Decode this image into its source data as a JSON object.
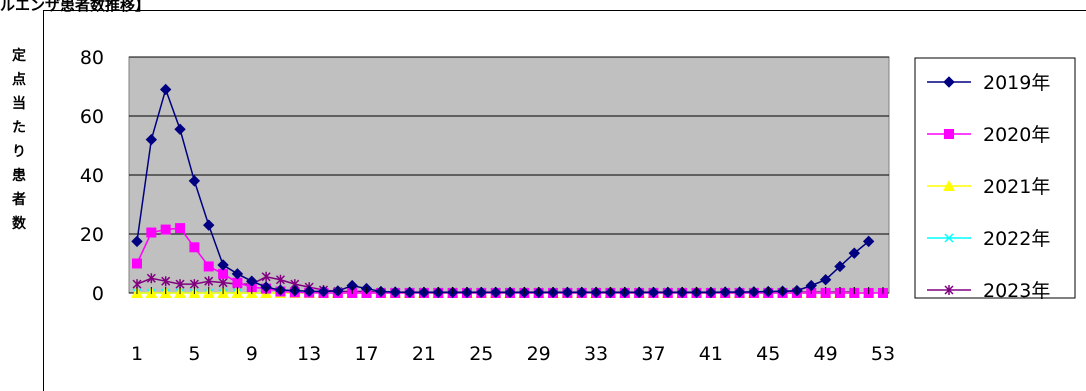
{
  "title": "ルエンザ患者数推移】",
  "chart_data": {
    "type": "line",
    "ylabel": "定点当たり患者数",
    "ylim": [
      0,
      80
    ],
    "yticks": [
      0,
      20,
      40,
      60,
      80
    ],
    "xlim": [
      1,
      53
    ],
    "xticks": [
      1,
      5,
      9,
      13,
      17,
      21,
      25,
      29,
      33,
      37,
      41,
      45,
      49,
      53
    ],
    "grid": true,
    "legend_position": "right",
    "series": [
      {
        "name": "2019年",
        "color": "#000080",
        "marker": "diamond",
        "values": [
          17.5,
          52,
          69,
          55.5,
          38,
          23,
          9.5,
          6.5,
          4,
          2,
          1,
          0.8,
          0.6,
          0.5,
          0.7,
          2.5,
          1.5,
          0.5,
          0.3,
          0.2,
          0.2,
          0.2,
          0.2,
          0.2,
          0.2,
          0.2,
          0.2,
          0.2,
          0.2,
          0.2,
          0.2,
          0.2,
          0.2,
          0.2,
          0.2,
          0.2,
          0.2,
          0.2,
          0.2,
          0.2,
          0.2,
          0.3,
          0.3,
          0.4,
          0.5,
          0.6,
          0.8,
          2.5,
          4.5,
          9,
          13.5,
          17.5
        ]
      },
      {
        "name": "2020年",
        "color": "#ff00ff",
        "marker": "square",
        "values": [
          10,
          20.5,
          21.5,
          22,
          15.5,
          9,
          6.5,
          3.5,
          2,
          1.5,
          0.5,
          0.2,
          0.1,
          0,
          0,
          0,
          0,
          0,
          0,
          0,
          0,
          0,
          0,
          0,
          0,
          0,
          0,
          0,
          0,
          0,
          0,
          0,
          0,
          0,
          0,
          0,
          0,
          0,
          0,
          0,
          0,
          0,
          0,
          0,
          0,
          0,
          0,
          0,
          0,
          0,
          0,
          0,
          0
        ]
      },
      {
        "name": "2021年",
        "color": "#ffff00",
        "marker": "triangle",
        "values": [
          0,
          0,
          0,
          0,
          0,
          0,
          0,
          0,
          0,
          0,
          0,
          0,
          0,
          0,
          0,
          0,
          0,
          0,
          0,
          0,
          0,
          0,
          0,
          0,
          0,
          0,
          0,
          0,
          0,
          0,
          0,
          0,
          0,
          0,
          0,
          0,
          0,
          0,
          0,
          0,
          0,
          0,
          0,
          0,
          0,
          0,
          0,
          0,
          0,
          0,
          0,
          0
        ]
      },
      {
        "name": "2022年",
        "color": "#00ffff",
        "marker": "x",
        "values": [
          0,
          0,
          0,
          0,
          0,
          0,
          0,
          0,
          0,
          0,
          0,
          0,
          0,
          0,
          0,
          0,
          0,
          0,
          0,
          0,
          0,
          0,
          0,
          0,
          0,
          0,
          0,
          0,
          0,
          0,
          0,
          0,
          0,
          0,
          0,
          0,
          0,
          0,
          0,
          0,
          0,
          0,
          0,
          0,
          0,
          0,
          0,
          0,
          0,
          0,
          0,
          0
        ]
      },
      {
        "name": "2023年",
        "color": "#800080",
        "marker": "star",
        "values": [
          3,
          5,
          4,
          3,
          3,
          4,
          3.5,
          3,
          3,
          5.5,
          4.5,
          3,
          2,
          1,
          0.5,
          0.5,
          0.5,
          0.3,
          0.3,
          0.3,
          0.3,
          0.3,
          0.3,
          0.3,
          0.3,
          0.3,
          0.3,
          0.3,
          0.3,
          0.3,
          0.3,
          0.3,
          0.3,
          0.3,
          0.3,
          0.3,
          0.3,
          0.3,
          0.3,
          0.3,
          0.3,
          0.3,
          0.3,
          0.3,
          0.3,
          0.3,
          0.3,
          0.3,
          0.3,
          0.3,
          0.3
        ]
      }
    ]
  }
}
